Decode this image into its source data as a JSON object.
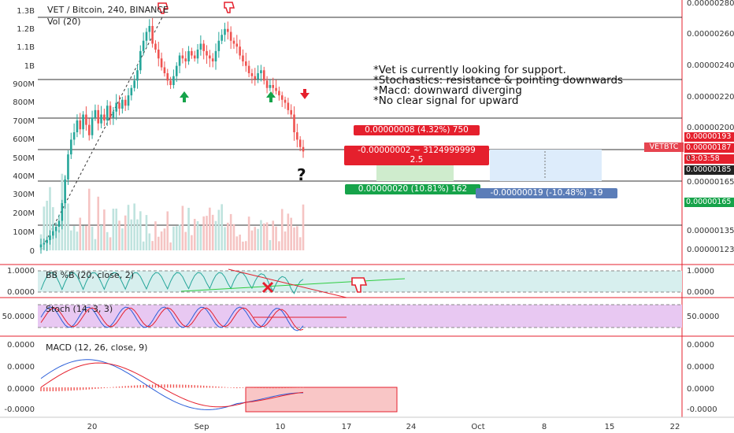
{
  "chart_data": [
    {
      "type": "candlestick",
      "title": "VET / Bitcoin, 240, BINANCE",
      "indicator_label": "Vol (20)",
      "price_ticks": [
        "0.00000280",
        "0.00000260",
        "0.00000240",
        "0.00000220",
        "0.00000200",
        "0.00000165",
        "0.00000135",
        "0.00000123"
      ],
      "volume_ticks": [
        "1.3B",
        "1.2B",
        "1.1B",
        "1B",
        "900M",
        "800M",
        "700M",
        "600M",
        "500M",
        "400M",
        "300M",
        "200M",
        "100M",
        "0"
      ],
      "x_ticks": [
        "20",
        "Sep",
        "10",
        "17",
        "24",
        "Oct",
        "8",
        "15",
        "22"
      ],
      "price_labels": [
        {
          "text": "0.00000193",
          "color": "#e5202d"
        },
        {
          "text": "0.00000187",
          "color": "#e5202d"
        },
        {
          "text": "03:03:58",
          "color": "#e5202d"
        },
        {
          "text": "0.00000185",
          "color": "#222222"
        },
        {
          "text": "0.00000165",
          "color": "#16a34a"
        }
      ],
      "ticker": "VETBTC",
      "marker_zero": "0",
      "close_series": [
        1.24,
        1.25,
        1.27,
        1.3,
        1.33,
        1.36,
        1.4,
        1.52,
        1.68,
        1.85,
        1.95,
        2.0,
        2.08,
        2.02,
        2.12,
        2.05,
        1.98,
        2.1,
        2.15,
        2.06,
        2.12,
        2.08,
        2.18,
        2.1,
        2.14,
        2.2,
        2.16,
        2.22,
        2.18,
        2.25,
        2.3,
        2.35,
        2.42,
        2.55,
        2.62,
        2.68,
        2.72,
        2.6,
        2.56,
        2.5,
        2.44,
        2.4,
        2.35,
        2.32,
        2.38,
        2.45,
        2.52,
        2.5,
        2.48,
        2.55,
        2.52,
        2.5,
        2.56,
        2.6,
        2.55,
        2.52,
        2.5,
        2.48,
        2.55,
        2.62,
        2.66,
        2.7,
        2.68,
        2.62,
        2.6,
        2.58,
        2.52,
        2.48,
        2.45,
        2.4,
        2.38,
        2.36,
        2.4,
        2.42,
        2.35,
        2.3,
        2.32,
        2.3,
        2.28,
        2.25,
        2.22,
        2.2,
        2.15,
        2.12,
        2.0,
        1.95,
        1.9,
        1.87
      ]
    },
    {
      "type": "line",
      "indicator_label": "BB %B (20, close, 2)",
      "ticks": [
        "1.0000",
        "0.0000"
      ]
    },
    {
      "type": "line",
      "indicator_label": "Stoch (14, 3, 3)",
      "ticks": [
        "50.0000"
      ]
    },
    {
      "type": "line",
      "indicator_label": "MACD (12, 26, close, 9)",
      "ticks": [
        "0.0000",
        "0.0000",
        "0.0000",
        "-0.0000"
      ]
    }
  ],
  "notes": [
    "*Vet is currently looking for support.",
    "*Stochastics: resistance & pointing downwards",
    "*Macd: downward diverging",
    "*No clear signal for upward"
  ],
  "position_boxes": {
    "top": "0.00000008 (4.32%) 750",
    "mid_line1": "-0.00000002 ~ 3124999999",
    "mid_line2": "2.5",
    "long_target": "0.00000020 (10.81%) 162",
    "short_target": "-0.00000019 (-10.48%) -19"
  },
  "question_mark": "?",
  "colors": {
    "up": "#26a69a",
    "down": "#ef5350",
    "bb_fill": "#d7efee",
    "stoch_fill": "#e8c8f2",
    "macd_box": "#f9c6c6"
  }
}
